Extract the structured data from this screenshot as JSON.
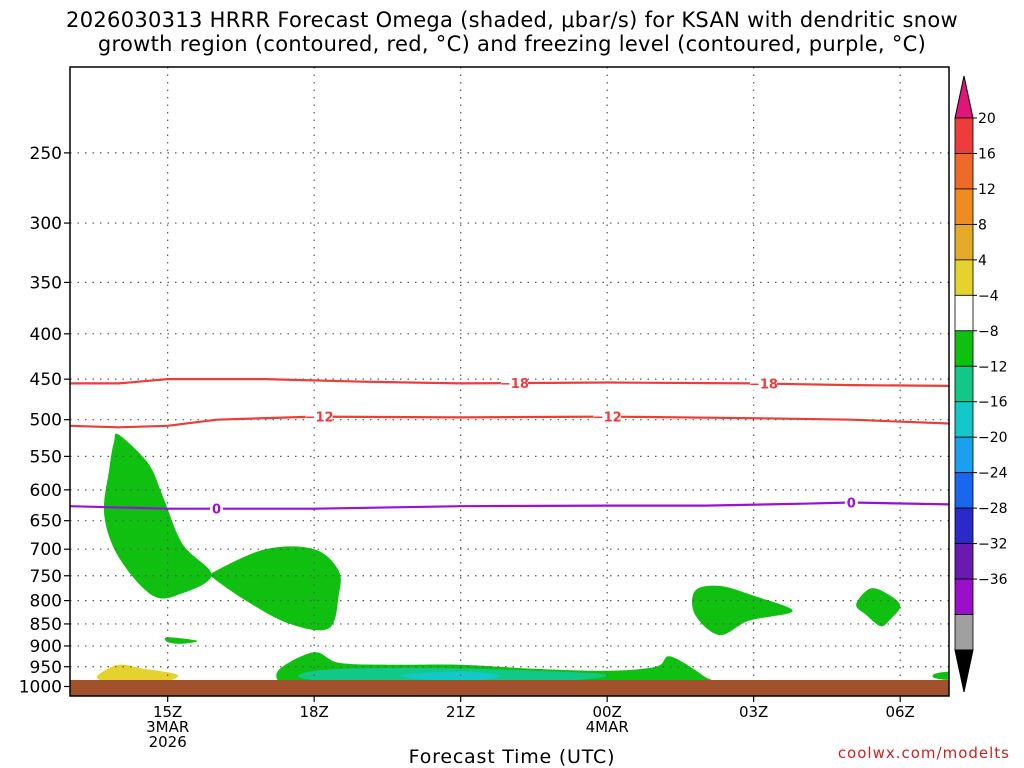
{
  "title_line1": "2026030313 HRRR Forecast Omega (shaded, μbar/s) for KSAN with dendritic snow",
  "title_line2": "growth region (contoured, red, °C) and freezing level (contoured, purple, °C)",
  "credit": "coolwx.com/modelts",
  "chart_data": {
    "type": "heatmap",
    "title": "2026030313 HRRR Forecast Omega (shaded, μbar/s) for KSAN with dendritic snow growth region (contoured, red, °C) and freezing level (contoured, purple, °C)",
    "xlabel": "Forecast Time (UTC)",
    "ylabel": "",
    "x_unit": "hours",
    "xlim": [
      13,
      31
    ],
    "x_ticks": [
      {
        "value": 15,
        "labels": [
          "15Z",
          "3MAR",
          "2026"
        ]
      },
      {
        "value": 18,
        "labels": [
          "18Z"
        ]
      },
      {
        "value": 21,
        "labels": [
          "21Z"
        ]
      },
      {
        "value": 24,
        "labels": [
          "00Z",
          "4MAR"
        ]
      },
      {
        "value": 27,
        "labels": [
          "03Z"
        ]
      },
      {
        "value": 30,
        "labels": [
          "06Z"
        ]
      }
    ],
    "y_scale": "pressure (log), hPa, inverted",
    "ylim": [
      1025,
      200
    ],
    "y_ticks": [
      250,
      300,
      350,
      400,
      450,
      500,
      550,
      600,
      650,
      700,
      750,
      800,
      850,
      900,
      950,
      1000
    ],
    "grid": true,
    "colorbar": {
      "labels": [
        "20",
        "16",
        "12",
        "8",
        "4",
        "−4",
        "−8",
        "−12",
        "−16",
        "−20",
        "−24",
        "−28",
        "−32",
        "−36"
      ],
      "colors": [
        "#ee3c3c",
        "#ee6a2a",
        "#ee8c22",
        "#e6aa2a",
        "#e6d22c",
        "#ffffff",
        "#10c010",
        "#12c888",
        "#12c8c8",
        "#1aa0ee",
        "#1a66ee",
        "#2a2ac8",
        "#6a1ab0",
        "#9a10c8",
        "#a0a0a0"
      ],
      "top_arrow_color": "#e0157a",
      "bottom_arrow_color": "#000000"
    },
    "shaded_regions": [
      {
        "range": "-4 to -8",
        "color": "#10c010",
        "points": [
          [
            14.0,
            520
          ],
          [
            14.6,
            560
          ],
          [
            14.9,
            610
          ],
          [
            15.3,
            690
          ],
          [
            15.9,
            748
          ],
          [
            15.3,
            785
          ],
          [
            14.7,
            790
          ],
          [
            14.0,
            715
          ],
          [
            13.7,
            640
          ],
          [
            13.8,
            570
          ],
          [
            13.9,
            530
          ]
        ]
      },
      {
        "range": "-4 to -8",
        "color": "#10c010",
        "points": [
          [
            15.9,
            745
          ],
          [
            17.0,
            700
          ],
          [
            18.0,
            700
          ],
          [
            18.5,
            740
          ],
          [
            18.5,
            790
          ],
          [
            18.3,
            860
          ],
          [
            17.5,
            850
          ],
          [
            16.6,
            800
          ],
          [
            15.9,
            752
          ]
        ]
      },
      {
        "range": "-4 to -8",
        "color": "#10c010",
        "points": [
          [
            15.0,
            880
          ],
          [
            15.6,
            888
          ],
          [
            15.3,
            895
          ],
          [
            15.0,
            891
          ]
        ]
      },
      {
        "range": "-4 to -8",
        "color": "#10c010",
        "points": [
          [
            17.3,
            955
          ],
          [
            18.0,
            915
          ],
          [
            18.5,
            940
          ],
          [
            19.5,
            945
          ],
          [
            21.0,
            945
          ],
          [
            22.5,
            955
          ],
          [
            24.0,
            960
          ],
          [
            25.0,
            950
          ],
          [
            25.3,
            925
          ],
          [
            26.0,
            975
          ],
          [
            26.0,
            985
          ],
          [
            24.5,
            1003
          ],
          [
            22.0,
            1010
          ],
          [
            20.0,
            1012
          ],
          [
            17.8,
            1008
          ],
          [
            17.3,
            990
          ]
        ]
      },
      {
        "range": "-8 to -12",
        "color": "#12c888",
        "points": [
          [
            17.8,
            965
          ],
          [
            18.6,
            955
          ],
          [
            20.5,
            953
          ],
          [
            22.5,
            960
          ],
          [
            24.0,
            970
          ],
          [
            23.2,
            985
          ],
          [
            21.0,
            995
          ],
          [
            19.0,
            992
          ],
          [
            17.8,
            980
          ]
        ]
      },
      {
        "range": "-12 to -16",
        "color": "#12c8c8",
        "points": [
          [
            19.8,
            970
          ],
          [
            21.0,
            962
          ],
          [
            21.8,
            972
          ],
          [
            21.3,
            985
          ],
          [
            20.2,
            982
          ]
        ]
      },
      {
        "range": "-4 to -8",
        "color": "#10c010",
        "points": [
          [
            25.8,
            780
          ],
          [
            26.3,
            770
          ],
          [
            27.0,
            790
          ],
          [
            27.8,
            822
          ],
          [
            26.9,
            843
          ],
          [
            26.3,
            875
          ],
          [
            25.8,
            830
          ]
        ]
      },
      {
        "range": "-4 to -8",
        "color": "#10c010",
        "points": [
          [
            29.4,
            775
          ],
          [
            29.8,
            790
          ],
          [
            30.0,
            812
          ],
          [
            29.8,
            840
          ],
          [
            29.6,
            855
          ],
          [
            29.3,
            830
          ],
          [
            29.1,
            808
          ]
        ]
      },
      {
        "range": "-4 to -8",
        "color": "#10c010",
        "points": [
          [
            30.7,
            968
          ],
          [
            31.0,
            963
          ],
          [
            31.0,
            982
          ],
          [
            30.7,
            978
          ]
        ]
      },
      {
        "range": "4 to 8",
        "color": "#e6d22c",
        "points": [
          [
            13.6,
            968
          ],
          [
            14.0,
            945
          ],
          [
            14.5,
            955
          ],
          [
            15.2,
            970
          ],
          [
            14.9,
            988
          ],
          [
            14.0,
            992
          ],
          [
            13.6,
            982
          ]
        ]
      }
    ],
    "contours": [
      {
        "name": "-18",
        "color": "#ee3c3c",
        "label": "−18",
        "label_x": [
          22.1,
          27.2
        ],
        "points": [
          [
            13,
            455
          ],
          [
            14,
            455
          ],
          [
            15,
            450
          ],
          [
            17,
            450
          ],
          [
            19,
            453
          ],
          [
            21,
            455
          ],
          [
            24,
            454
          ],
          [
            27,
            455
          ],
          [
            29,
            457
          ],
          [
            31,
            458
          ]
        ]
      },
      {
        "name": "-12",
        "color": "#ee3c3c",
        "label": "−12",
        "label_x": [
          18.1,
          24.0
        ],
        "points": [
          [
            13,
            508
          ],
          [
            14,
            510
          ],
          [
            15,
            508
          ],
          [
            16,
            500
          ],
          [
            18,
            496
          ],
          [
            21,
            497
          ],
          [
            24,
            496
          ],
          [
            27,
            498
          ],
          [
            29,
            500
          ],
          [
            31,
            505
          ]
        ]
      },
      {
        "name": "0",
        "color": "#9a10d8",
        "label": "0",
        "label_x": [
          16.0,
          29.0
        ],
        "points": [
          [
            13,
            626
          ],
          [
            15,
            630
          ],
          [
            16,
            630
          ],
          [
            18,
            630
          ],
          [
            21,
            626
          ],
          [
            24,
            625
          ],
          [
            26,
            625
          ],
          [
            28,
            622
          ],
          [
            29,
            620
          ],
          [
            31,
            623
          ]
        ]
      }
    ],
    "surface_band_color": "#a0522d"
  }
}
